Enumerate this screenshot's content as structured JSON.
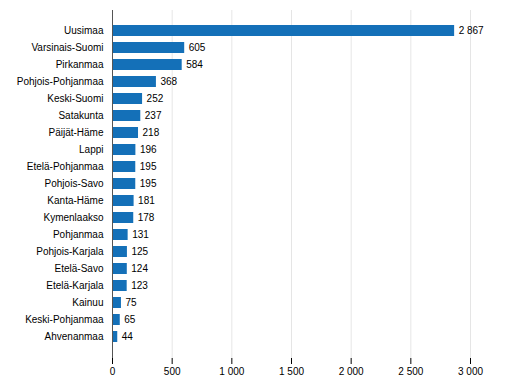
{
  "chart_data": {
    "type": "bar",
    "orientation": "horizontal",
    "categories": [
      "Ahvenanmaa",
      "Keski-Pohjanmaa",
      "Kainuu",
      "Etelä-Karjala",
      "Etelä-Savo",
      "Pohjois-Karjala",
      "Pohjanmaa",
      "Kymenlaakso",
      "Kanta-Häme",
      "Pohjois-Savo",
      "Etelä-Pohjanmaa",
      "Lappi",
      "Päijät-Häme",
      "Satakunta",
      "Keski-Suomi",
      "Pohjois-Pohjanmaa",
      "Pirkanmaa",
      "Varsinais-Suomi",
      "Uusimaa"
    ],
    "values": [
      44,
      65,
      75,
      123,
      124,
      125,
      131,
      178,
      181,
      195,
      195,
      196,
      218,
      237,
      252,
      368,
      584,
      605,
      2867
    ],
    "value_labels": [
      "44",
      "65",
      "75",
      "123",
      "124",
      "125",
      "131",
      "178",
      "181",
      "195",
      "195",
      "196",
      "218",
      "237",
      "252",
      "368",
      "584",
      "605",
      "2 867"
    ],
    "data_labels": true,
    "color": "#1470b8",
    "xlim": [
      0,
      3000
    ],
    "xticks": [
      0,
      500,
      {
        "value": 1000,
        "label": "1 000"
      },
      {
        "value": 1500,
        "label": "1 500"
      },
      {
        "value": 2000,
        "label": "2 000"
      },
      {
        "value": 2500,
        "label": "2 500"
      },
      {
        "value": 3000,
        "label": "3 000"
      }
    ],
    "grid": true
  }
}
